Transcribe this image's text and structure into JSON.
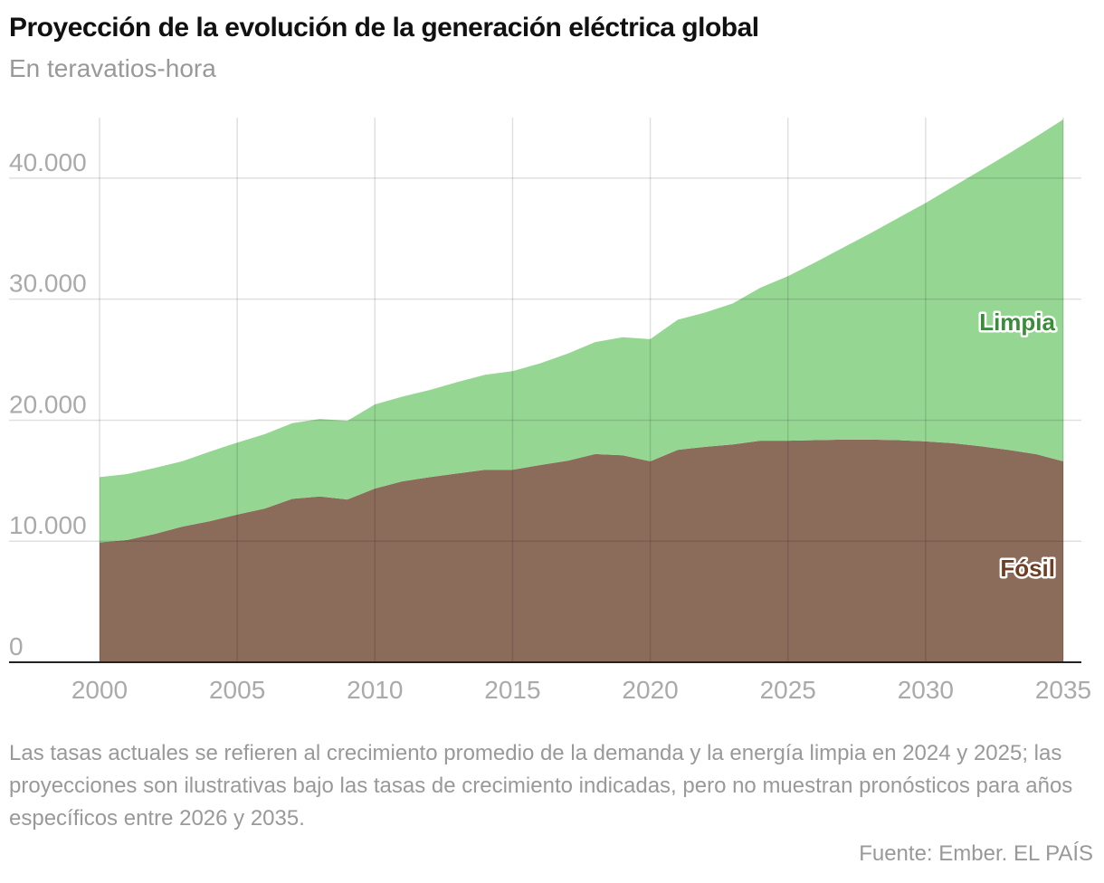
{
  "chart_data": {
    "type": "stacked-area",
    "title": "Proyección de la evolución de la generación eléctrica global",
    "subtitle": "En teravatios-hora",
    "x": [
      2000,
      2001,
      2002,
      2003,
      2004,
      2005,
      2006,
      2007,
      2008,
      2009,
      2010,
      2011,
      2012,
      2013,
      2014,
      2015,
      2016,
      2017,
      2018,
      2019,
      2020,
      2021,
      2022,
      2023,
      2024,
      2025,
      2026,
      2027,
      2028,
      2029,
      2030,
      2031,
      2032,
      2033,
      2034,
      2035
    ],
    "series": [
      {
        "name": "Fósil",
        "color": "#8b6b5a",
        "label_color": "#6e3f25",
        "values": [
          9900,
          10100,
          10600,
          11200,
          11650,
          12200,
          12700,
          13500,
          13700,
          13450,
          14350,
          14950,
          15300,
          15600,
          15900,
          15900,
          16300,
          16650,
          17200,
          17100,
          16600,
          17550,
          17800,
          18000,
          18300,
          18300,
          18350,
          18400,
          18400,
          18350,
          18250,
          18100,
          17850,
          17550,
          17200,
          16600
        ]
      },
      {
        "name": "Limpia",
        "color": "#95d792",
        "label_color": "#3a8c3a",
        "values": [
          5400,
          5450,
          5450,
          5400,
          5750,
          5950,
          6150,
          6250,
          6400,
          6500,
          6950,
          7000,
          7200,
          7550,
          7850,
          8150,
          8400,
          8850,
          9250,
          9750,
          10100,
          10750,
          11100,
          11650,
          12650,
          13600,
          14700,
          15850,
          17050,
          18350,
          19700,
          21200,
          22800,
          24450,
          26200,
          28250
        ]
      }
    ],
    "xlim": [
      2000,
      2035
    ],
    "xticks": [
      2000,
      2005,
      2010,
      2015,
      2020,
      2025,
      2030,
      2035
    ],
    "ylim": [
      0,
      45000
    ],
    "yticks": [
      0,
      {
        "value": 10000,
        "label": "10.000"
      },
      {
        "value": 20000,
        "label": "20.000"
      },
      {
        "value": 30000,
        "label": "30.000"
      },
      {
        "value": 40000,
        "label": "40.000"
      }
    ],
    "grid": true,
    "note": "Las tasas actuales se refieren al crecimiento promedio de la demanda y la energía limpia en 2024 y 2025; las proyecciones son ilustrativas bajo las tasas de crecimiento indicadas, pero no muestran pronósticos para años específicos entre 2026 y 2035.",
    "source": "Fuente: Ember. EL PAÍS"
  }
}
